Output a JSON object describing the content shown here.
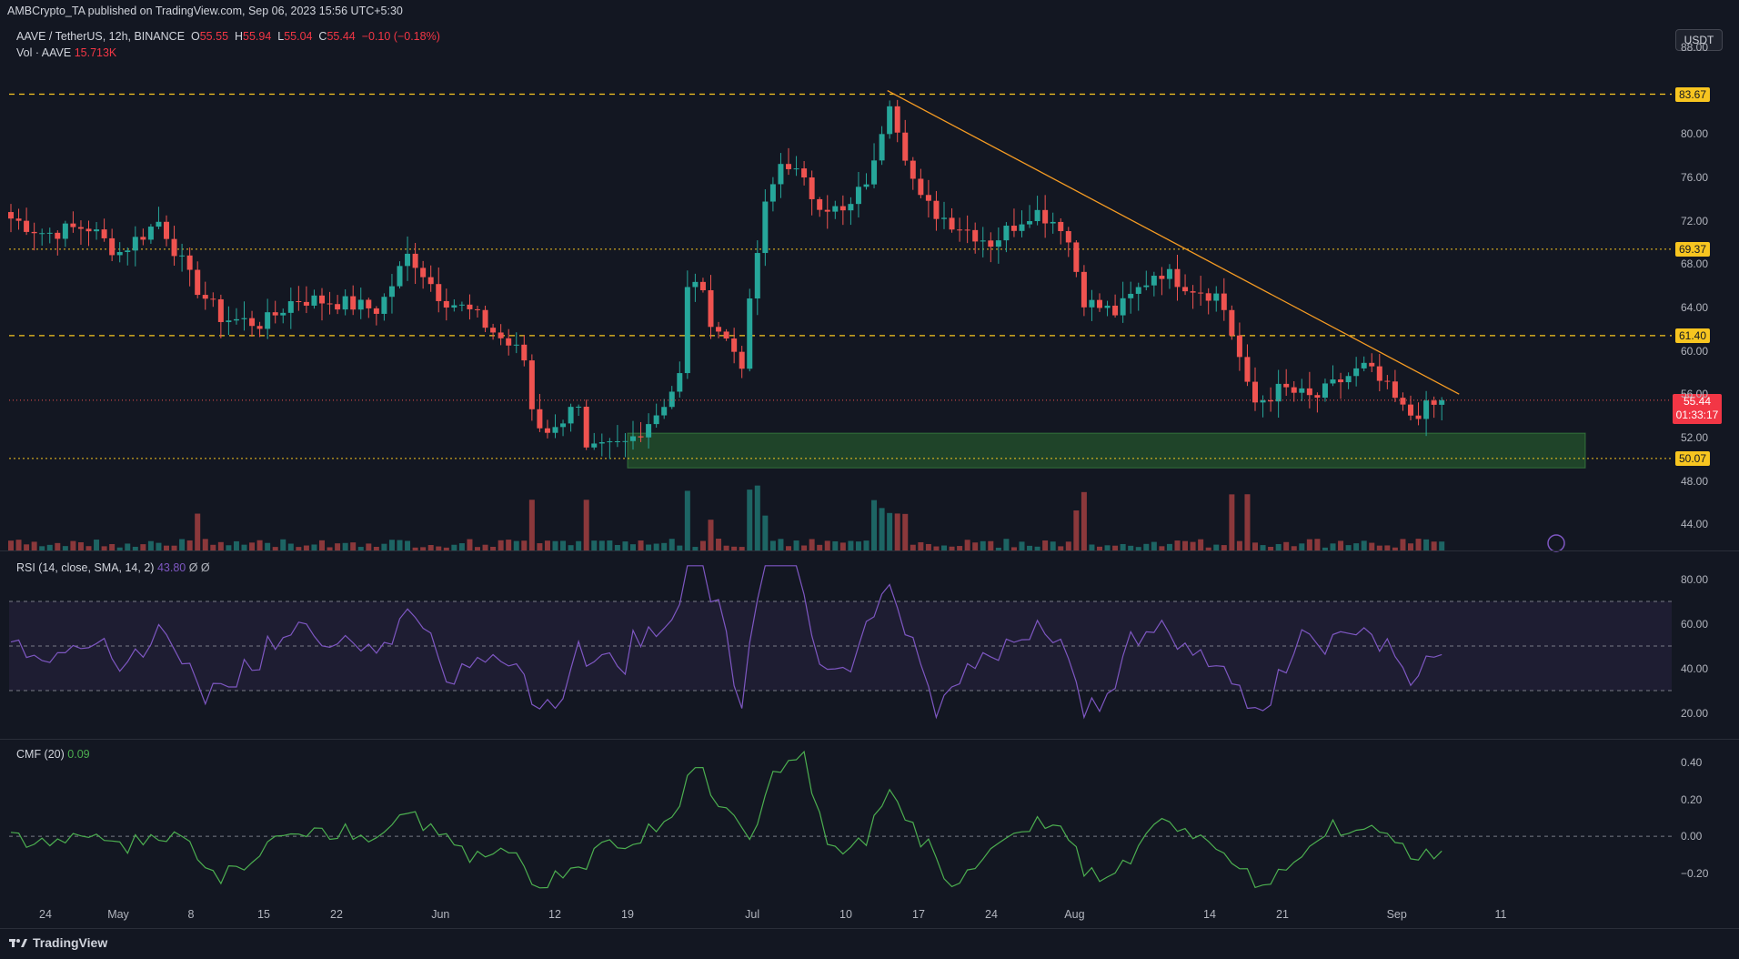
{
  "header": {
    "published": "AMBCrypto_TA published on TradingView.com, Sep 06, 2023 15:56 UTC+5:30"
  },
  "legend": {
    "symbol": "AAVE / TetherUS, 12h, BINANCE",
    "o_label": "O",
    "o": "55.55",
    "h_label": "H",
    "h": "55.94",
    "l_label": "L",
    "l": "55.04",
    "c_label": "C",
    "c": "55.44",
    "change": "−0.10 (−0.18%)"
  },
  "volume": {
    "label": "Vol · AAVE",
    "value": "15.713K"
  },
  "rsi": {
    "label": "RSI (14, close, SMA, 14, 2)",
    "value": "43.80",
    "extra": "Ø Ø"
  },
  "cmf": {
    "label": "CMF (20)",
    "value": "0.09"
  },
  "currency_button": "USDT",
  "price_levels": [
    "83.67",
    "69.37",
    "61.40",
    "50.07"
  ],
  "current_price": {
    "price": "55.44",
    "countdown": "01:33:17"
  },
  "price_axis": [
    "88.00",
    "80.00",
    "76.00",
    "72.00",
    "68.00",
    "64.00",
    "60.00",
    "56.00",
    "52.00",
    "48.00",
    "44.00"
  ],
  "rsi_axis": [
    "80.00",
    "60.00",
    "40.00",
    "20.00"
  ],
  "cmf_axis": [
    "0.40",
    "0.20",
    "0.00",
    "−0.20"
  ],
  "time_axis": [
    "24",
    "May",
    "8",
    "15",
    "22",
    "Jun",
    "12",
    "19",
    "Jul",
    "10",
    "17",
    "24",
    "Aug",
    "14",
    "21",
    "Sep",
    "11"
  ],
  "footer_brand": "TradingView",
  "colors": {
    "background": "#131722",
    "bull": "#26a69a",
    "bear": "#ef5350",
    "level_line": "#f7c520",
    "trendline": "#f59b23",
    "rsi_line": "#7e57c2",
    "cmf_line": "#4caf50",
    "demand_zone": "#2e7d32"
  },
  "chart_data": {
    "type": "candlestick",
    "symbol": "AAVE / TetherUS",
    "timeframe": "12h",
    "exchange": "BINANCE",
    "ylim": [
      42,
      89
    ],
    "horizontal_levels": [
      83.67,
      69.37,
      61.4,
      50.07
    ],
    "demand_zone": [
      49.2,
      52.4
    ],
    "close_path": [
      [
        "Apr 20",
        72.5
      ],
      [
        "Apr 24",
        70.8
      ],
      [
        "Apr 28",
        71.5
      ],
      [
        "May 1",
        69.0
      ],
      [
        "May 5",
        72.0
      ],
      [
        "May 8",
        66.5
      ],
      [
        "May 11",
        63.0
      ],
      [
        "May 15",
        62.5
      ],
      [
        "May 18",
        64.8
      ],
      [
        "May 22",
        64.5
      ],
      [
        "May 26",
        63.8
      ],
      [
        "May 29",
        69.0
      ],
      [
        "Jun 1",
        65.0
      ],
      [
        "Jun 4",
        63.5
      ],
      [
        "Jun 7",
        61.0
      ],
      [
        "Jun 9",
        59.5
      ],
      [
        "Jun 10",
        53.5
      ],
      [
        "Jun 12",
        52.5
      ],
      [
        "Jun 14",
        56.0
      ],
      [
        "Jun 15",
        50.5
      ],
      [
        "Jun 19",
        51.5
      ],
      [
        "Jun 22",
        54.5
      ],
      [
        "Jun 24",
        57.5
      ],
      [
        "Jun 25",
        68.0
      ],
      [
        "Jun 27",
        63.0
      ],
      [
        "Jun 30",
        59.0
      ],
      [
        "Jul 2",
        72.5
      ],
      [
        "Jul 4",
        78.0
      ],
      [
        "Jul 7",
        74.0
      ],
      [
        "Jul 10",
        72.5
      ],
      [
        "Jul 13",
        77.5
      ],
      [
        "Jul 14",
        84.0
      ],
      [
        "Jul 17",
        74.0
      ],
      [
        "Jul 19",
        72.5
      ],
      [
        "Jul 24",
        70.0
      ],
      [
        "Jul 28",
        73.0
      ],
      [
        "Jul 31",
        71.5
      ],
      [
        "Aug 2",
        64.5
      ],
      [
        "Aug 5",
        63.5
      ],
      [
        "Aug 9",
        67.5
      ],
      [
        "Aug 12",
        66.0
      ],
      [
        "Aug 15",
        65.0
      ],
      [
        "Aug 17",
        59.0
      ],
      [
        "Aug 18",
        55.0
      ],
      [
        "Aug 21",
        56.5
      ],
      [
        "Aug 24",
        55.5
      ],
      [
        "Aug 27",
        57.5
      ],
      [
        "Aug 29",
        58.5
      ],
      [
        "Aug 31",
        56.5
      ],
      [
        "Sep 2",
        54.0
      ],
      [
        "Sep 6",
        55.44
      ]
    ],
    "trendline": [
      [
        "Jul 14",
        84.0
      ],
      [
        "Sep 7",
        56.0
      ]
    ],
    "rsi": {
      "ylim": [
        10,
        90
      ],
      "bands": [
        30,
        70
      ],
      "middle": 50,
      "last": 43.8
    },
    "cmf": {
      "ylim": [
        -0.35,
        0.5
      ],
      "zero": 0,
      "last": 0.09
    }
  }
}
